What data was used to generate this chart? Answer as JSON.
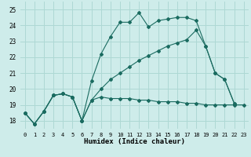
{
  "xlabel": "Humidex (Indice chaleur)",
  "xlim": [
    -0.5,
    23.5
  ],
  "ylim": [
    17.5,
    25.5
  ],
  "yticks": [
    18,
    19,
    20,
    21,
    22,
    23,
    24,
    25
  ],
  "xticks": [
    0,
    1,
    2,
    3,
    4,
    5,
    6,
    7,
    8,
    9,
    10,
    11,
    12,
    13,
    14,
    15,
    16,
    17,
    18,
    19,
    20,
    21,
    22,
    23
  ],
  "bg_color": "#ceecea",
  "grid_color": "#aed8d4",
  "line_color": "#1a6b60",
  "line1_x": [
    0,
    1,
    2,
    3,
    4,
    5,
    6,
    7,
    8,
    9,
    10,
    11,
    12,
    13,
    14,
    15,
    16,
    17,
    18,
    19,
    20,
    21,
    22,
    23
  ],
  "line1_y": [
    18.5,
    17.8,
    18.6,
    19.6,
    19.7,
    19.5,
    18.0,
    19.3,
    19.5,
    19.4,
    19.4,
    19.4,
    19.3,
    19.3,
    19.2,
    19.2,
    19.2,
    19.1,
    19.1,
    19.0,
    19.0,
    19.0,
    19.0,
    19.0
  ],
  "line2_x": [
    0,
    1,
    2,
    3,
    4,
    5,
    6,
    7,
    8,
    9,
    10,
    11,
    12,
    13,
    14,
    15,
    16,
    17,
    18,
    19,
    20,
    21,
    22
  ],
  "line2_y": [
    18.5,
    17.8,
    18.6,
    19.6,
    19.7,
    19.5,
    18.0,
    20.5,
    22.2,
    23.3,
    24.2,
    24.2,
    24.8,
    23.9,
    24.3,
    24.4,
    24.5,
    24.5,
    24.3,
    22.7,
    21.0,
    20.6,
    19.1
  ],
  "line3_x": [
    0,
    1,
    2,
    3,
    4,
    5,
    6,
    7,
    8,
    9,
    10,
    11,
    12,
    13,
    14,
    15,
    16,
    17,
    18,
    19,
    20,
    21,
    22,
    23
  ],
  "line3_y": [
    18.5,
    17.8,
    18.6,
    19.6,
    19.7,
    19.5,
    18.0,
    19.3,
    20.0,
    20.6,
    21.0,
    21.4,
    21.8,
    22.1,
    22.4,
    22.7,
    22.9,
    23.1,
    23.7,
    22.7,
    21.0,
    20.6,
    19.1,
    null
  ]
}
